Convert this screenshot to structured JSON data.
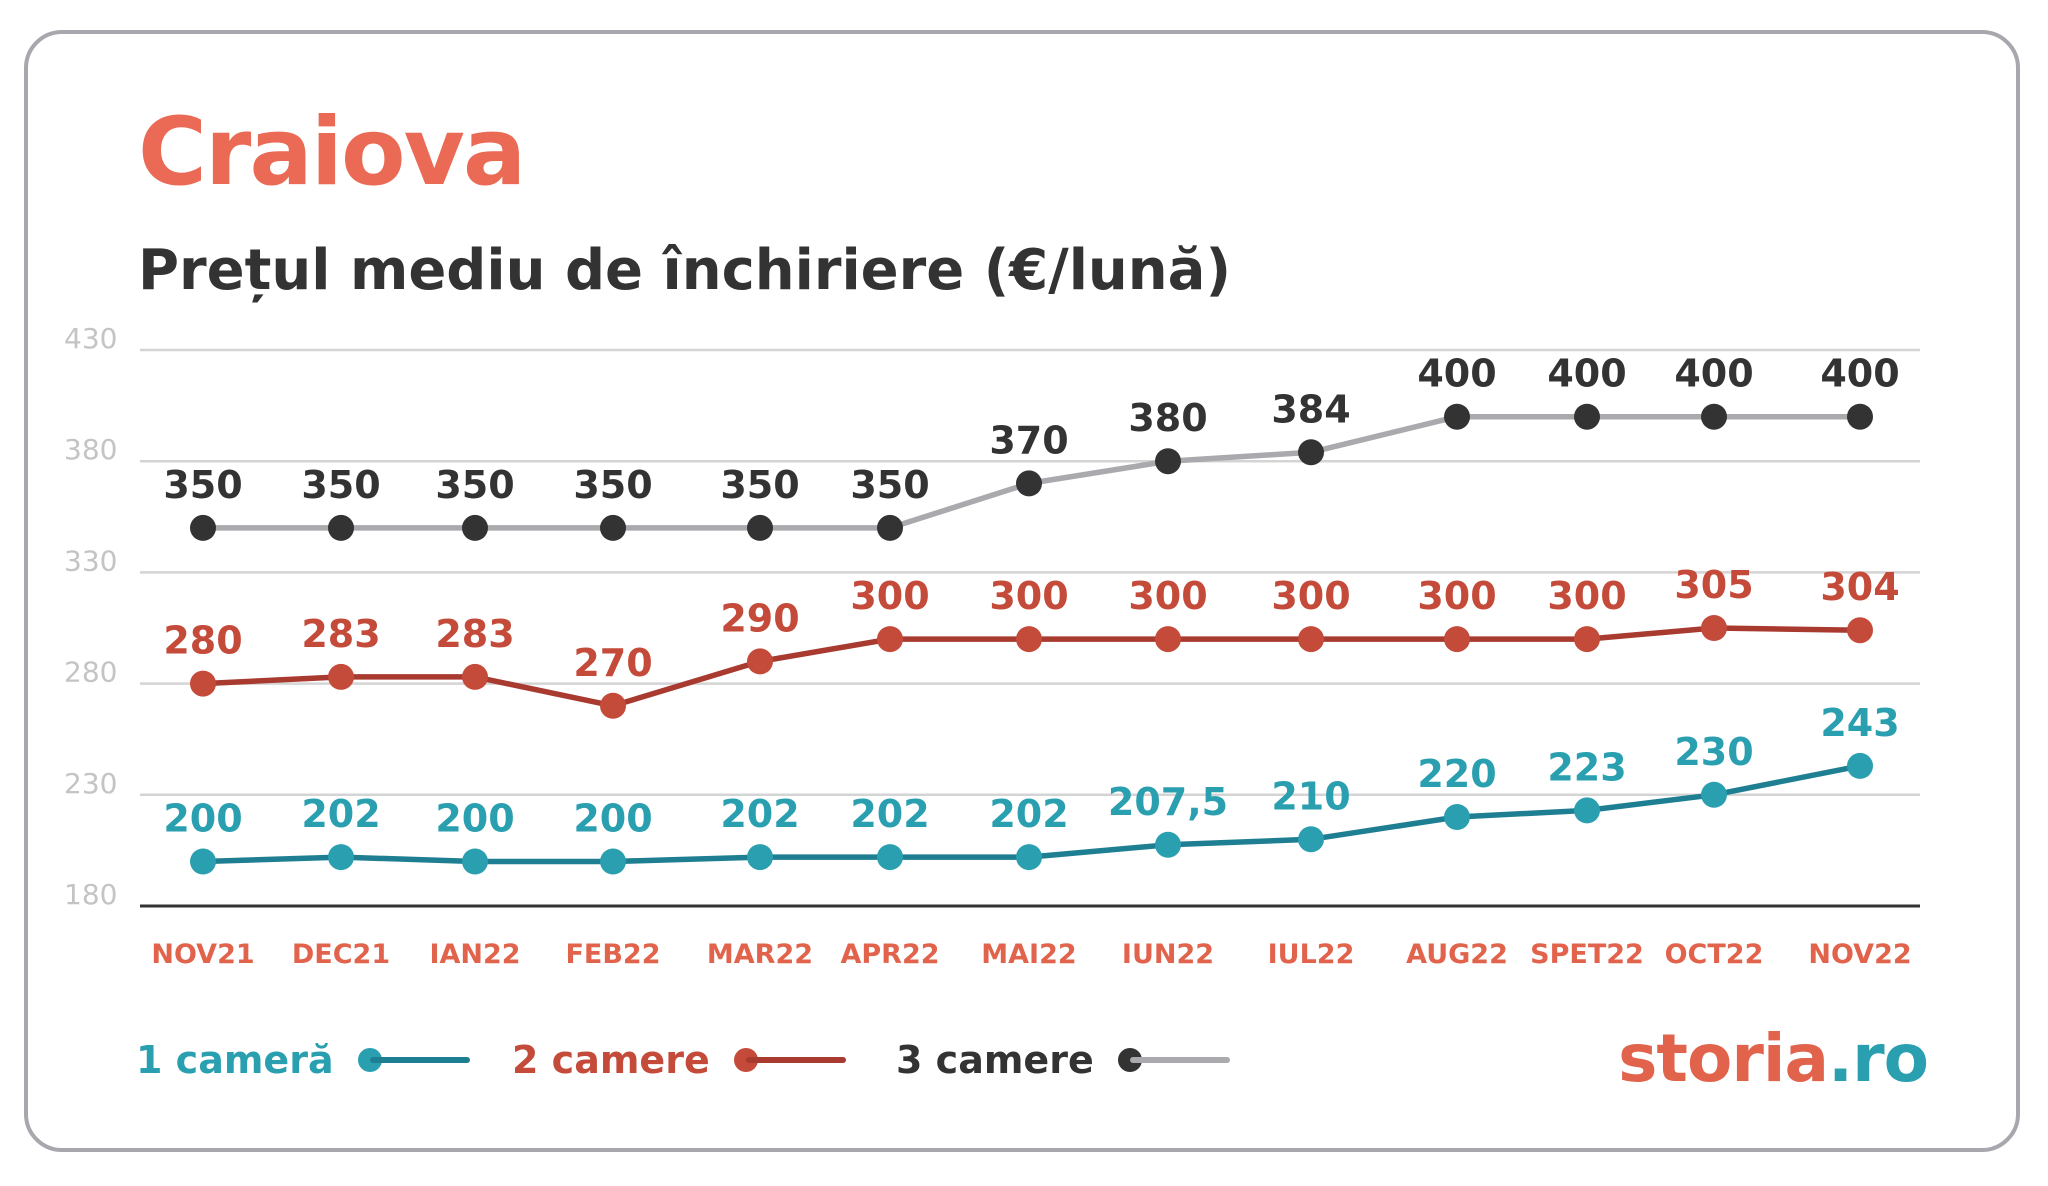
{
  "header": {
    "title": "Craiova",
    "subtitle": "Prețul mediu de închiriere (€/lună)"
  },
  "brand": {
    "name": "storia",
    "tld": ".ro"
  },
  "colors": {
    "title": "#ea6a55",
    "series_1": "#2a9fb0",
    "series_1_line": "#1e7f92",
    "series_2": "#c44a3a",
    "series_2_line": "#a83a2f",
    "series_3": "#333333",
    "series_3_line": "#a9a9ae",
    "grid": "#d4d4d4",
    "axis": "#333333",
    "ytick": "#c4c4c4",
    "xtick": "#e2634c",
    "logo_main": "#e2634c",
    "logo_tld": "#2a9fb0"
  },
  "chart_data": {
    "type": "line",
    "title": "Prețul mediu de închiriere (€/lună)",
    "categories": [
      "NOV21",
      "DEC21",
      "IAN22",
      "FEB22",
      "MAR22",
      "APR22",
      "MAI22",
      "IUN22",
      "IUL22",
      "AUG22",
      "SPET22",
      "OCT22",
      "NOV22"
    ],
    "yticks": [
      180,
      230,
      280,
      330,
      380,
      430
    ],
    "ylim": [
      180,
      430
    ],
    "grid": true,
    "legend_position": "bottom-left",
    "series": [
      {
        "name": "1 cameră",
        "values": [
          200,
          202,
          200,
          200,
          202,
          202,
          202,
          207.5,
          210,
          220,
          223,
          230,
          243
        ],
        "labels": [
          "200",
          "202",
          "200",
          "200",
          "202",
          "202",
          "202",
          "207,5",
          "210",
          "220",
          "223",
          "230",
          "243"
        ]
      },
      {
        "name": "2 camere",
        "values": [
          280,
          283,
          283,
          270,
          290,
          300,
          300,
          300,
          300,
          300,
          300,
          305,
          304
        ],
        "labels": [
          "280",
          "283",
          "283",
          "270",
          "290",
          "300",
          "300",
          "300",
          "300",
          "300",
          "300",
          "305",
          "304"
        ]
      },
      {
        "name": "3 camere",
        "values": [
          350,
          350,
          350,
          350,
          350,
          350,
          370,
          380,
          384,
          400,
          400,
          400,
          400
        ],
        "labels": [
          "350",
          "350",
          "350",
          "350",
          "350",
          "350",
          "370",
          "380",
          "384",
          "400",
          "400",
          "400",
          "400"
        ]
      }
    ]
  }
}
